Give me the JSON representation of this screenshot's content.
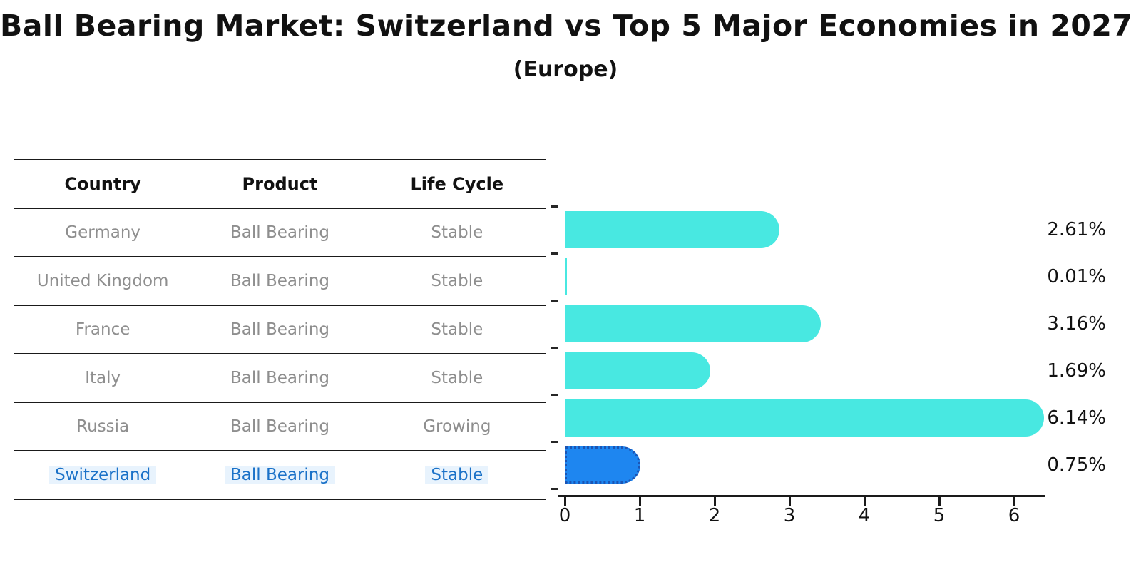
{
  "title": "Ball Bearing Market: Switzerland vs Top 5 Major Economies in 2027",
  "subtitle": "(Europe)",
  "table": {
    "headers": [
      "Country",
      "Product",
      "Life Cycle"
    ],
    "rows": [
      {
        "country": "Germany",
        "product": "Ball Bearing",
        "life_cycle": "Stable",
        "highlight": false
      },
      {
        "country": "United Kingdom",
        "product": "Ball Bearing",
        "life_cycle": "Stable",
        "highlight": false
      },
      {
        "country": "France",
        "product": "Ball Bearing",
        "life_cycle": "Stable",
        "highlight": false
      },
      {
        "country": "Italy",
        "product": "Ball Bearing",
        "life_cycle": "Stable",
        "highlight": false
      },
      {
        "country": "Russia",
        "product": "Ball Bearing",
        "life_cycle": "Growing",
        "highlight": false
      },
      {
        "country": "Switzerland",
        "product": "Ball Bearing",
        "life_cycle": "Stable",
        "highlight": true
      }
    ]
  },
  "chart_data": {
    "type": "bar",
    "orientation": "horizontal",
    "title": "Ball Bearing Market: Switzerland vs Top 5 Major Economies in 2027",
    "subtitle": "(Europe)",
    "categories": [
      "Germany",
      "United Kingdom",
      "France",
      "Italy",
      "Russia",
      "Switzerland"
    ],
    "values": [
      2.61,
      0.01,
      3.16,
      1.69,
      6.14,
      0.75
    ],
    "value_labels": [
      "2.61%",
      "0.01%",
      "3.16%",
      "1.69%",
      "6.14%",
      "0.75%"
    ],
    "highlight_index": 5,
    "xticks": [
      "0",
      "1",
      "2",
      "3",
      "4",
      "5",
      "6"
    ],
    "xlim": [
      0,
      6.5
    ],
    "grid": false,
    "legend": "none",
    "bar_color": "#48e8e1",
    "highlight_bar_color": "#1e86f0",
    "highlight_border_color": "#1c55b4",
    "highlight_text_color": "#1b72c8",
    "row_text_color": "#8e8e8e",
    "header_text_color": "#111111"
  }
}
